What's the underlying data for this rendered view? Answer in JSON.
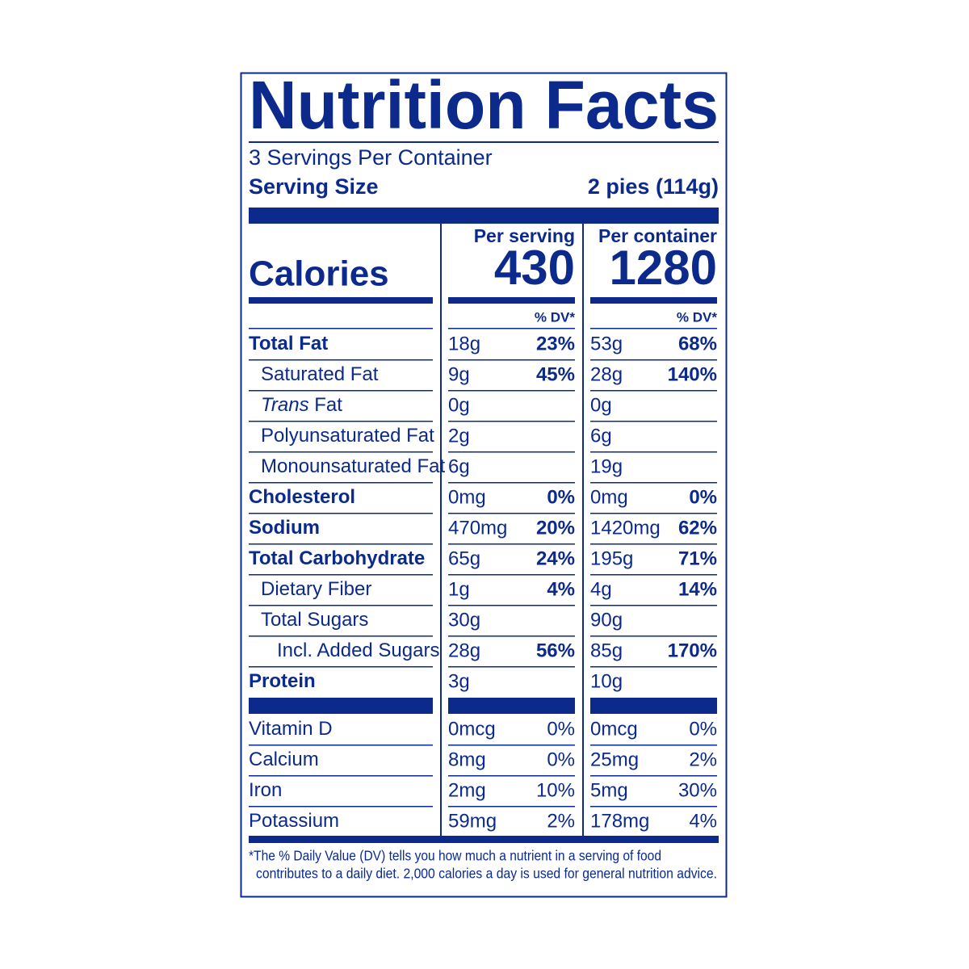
{
  "title": "Nutrition Facts",
  "servings": "3 Servings Per Container",
  "serving_size": {
    "label": "Serving Size",
    "value": "2 pies (114g)"
  },
  "calories_label": "Calories",
  "columns": [
    {
      "heading": "Per serving",
      "calories": "430",
      "dv_header": "% DV*"
    },
    {
      "heading": "Per container",
      "calories": "1280",
      "dv_header": "% DV*"
    }
  ],
  "nutrients": [
    {
      "name": "Total Fat",
      "bold": true,
      "indent": 0,
      "amounts": [
        "18g",
        "53g"
      ],
      "dv": [
        "23%",
        "68%"
      ]
    },
    {
      "name": "Saturated Fat",
      "bold": false,
      "indent": 1,
      "amounts": [
        "9g",
        "28g"
      ],
      "dv": [
        "45%",
        "140%"
      ]
    },
    {
      "name_italic": "Trans",
      "name": " Fat",
      "bold": false,
      "indent": 1,
      "amounts": [
        "0g",
        "0g"
      ]
    },
    {
      "name": "Polyunsaturated Fat",
      "bold": false,
      "indent": 1,
      "amounts": [
        "2g",
        "6g"
      ]
    },
    {
      "name": "Monounsaturated Fat",
      "bold": false,
      "indent": 1,
      "amounts": [
        "6g",
        "19g"
      ]
    },
    {
      "name": "Cholesterol",
      "bold": true,
      "indent": 0,
      "amounts": [
        "0mg",
        "0mg"
      ],
      "dv": [
        "0%",
        "0%"
      ]
    },
    {
      "name": "Sodium",
      "bold": true,
      "indent": 0,
      "amounts": [
        "470mg",
        "1420mg"
      ],
      "dv": [
        "20%",
        "62%"
      ]
    },
    {
      "name": "Total Carbohydrate",
      "bold": true,
      "indent": 0,
      "amounts": [
        "65g",
        "195g"
      ],
      "dv": [
        "24%",
        "71%"
      ]
    },
    {
      "name": "Dietary Fiber",
      "bold": false,
      "indent": 1,
      "amounts": [
        "1g",
        "4g"
      ],
      "dv": [
        "4%",
        "14%"
      ]
    },
    {
      "name": "Total Sugars",
      "bold": false,
      "indent": 1,
      "amounts": [
        "30g",
        "90g"
      ]
    },
    {
      "name": "Incl. Added Sugars",
      "bold": false,
      "indent": 2,
      "amounts": [
        "28g",
        "85g"
      ],
      "dv": [
        "56%",
        "170%"
      ]
    },
    {
      "name": "Protein",
      "bold": true,
      "indent": 0,
      "amounts": [
        "3g",
        "10g"
      ]
    }
  ],
  "vitamins": [
    {
      "name": "Vitamin D",
      "amounts": [
        "0mcg",
        "0mcg"
      ],
      "dv": [
        "0%",
        "0%"
      ]
    },
    {
      "name": "Calcium",
      "amounts": [
        "8mg",
        "25mg"
      ],
      "dv": [
        "0%",
        "2%"
      ]
    },
    {
      "name": "Iron",
      "amounts": [
        "2mg",
        "5mg"
      ],
      "dv": [
        "10%",
        "30%"
      ]
    },
    {
      "name": "Potassium",
      "amounts": [
        "59mg",
        "178mg"
      ],
      "dv": [
        "2%",
        "4%"
      ]
    }
  ],
  "footnote": [
    "*The % Daily Value (DV) tells you how much a nutrient in a serving of food",
    "contributes to a daily diet. 2,000 calories a day is used for general nutrition advice."
  ]
}
